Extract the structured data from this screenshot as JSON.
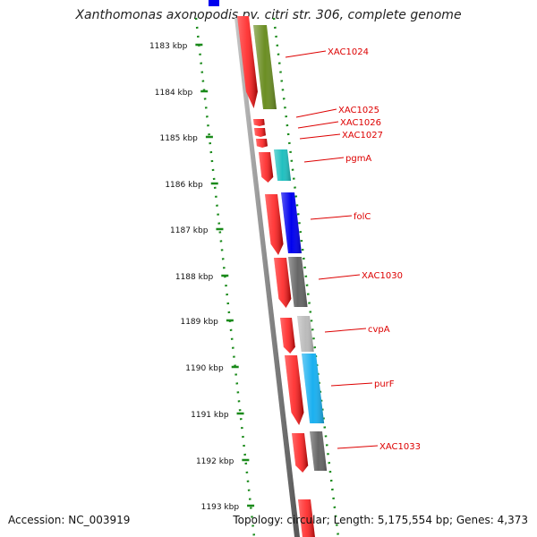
{
  "title": "Xanthomonas axonopodis pv. citri str. 306, complete genome",
  "footer": {
    "accession": "Accession: NC_003919",
    "summary": "Topology: circular; Length: 5,175,554 bp; Genes: 4,373"
  },
  "ticks": [
    {
      "label": "1183 kbp"
    },
    {
      "label": "1184 kbp"
    },
    {
      "label": "1185 kbp"
    },
    {
      "label": "1186 kbp"
    },
    {
      "label": "1187 kbp"
    },
    {
      "label": "1188 kbp"
    },
    {
      "label": "1189 kbp"
    },
    {
      "label": "1190 kbp"
    },
    {
      "label": "1191 kbp"
    },
    {
      "label": "1192 kbp"
    },
    {
      "label": "1193 kbp"
    }
  ],
  "genes": [
    {
      "label": "XAC1024",
      "color": "#6b8e23"
    },
    {
      "label": "XAC1025",
      "color": "#ff0000"
    },
    {
      "label": "XAC1026",
      "color": "#ff0000"
    },
    {
      "label": "XAC1027",
      "color": "#ff0000"
    },
    {
      "label": "pgmA",
      "color": "#20c0c0"
    },
    {
      "label": "folC",
      "color": "#0000ee"
    },
    {
      "label": "XAC1030",
      "color": "#666666"
    },
    {
      "label": "cvpA",
      "color": "#bbbbbb"
    },
    {
      "label": "purF",
      "color": "#1ab0f0"
    },
    {
      "label": "XAC1033",
      "color": "#666666"
    }
  ],
  "colors": {
    "cds": "#ff0000",
    "label": "#dd0000",
    "tick": "#1a8a1a",
    "backbone": "#8c8c8c"
  }
}
